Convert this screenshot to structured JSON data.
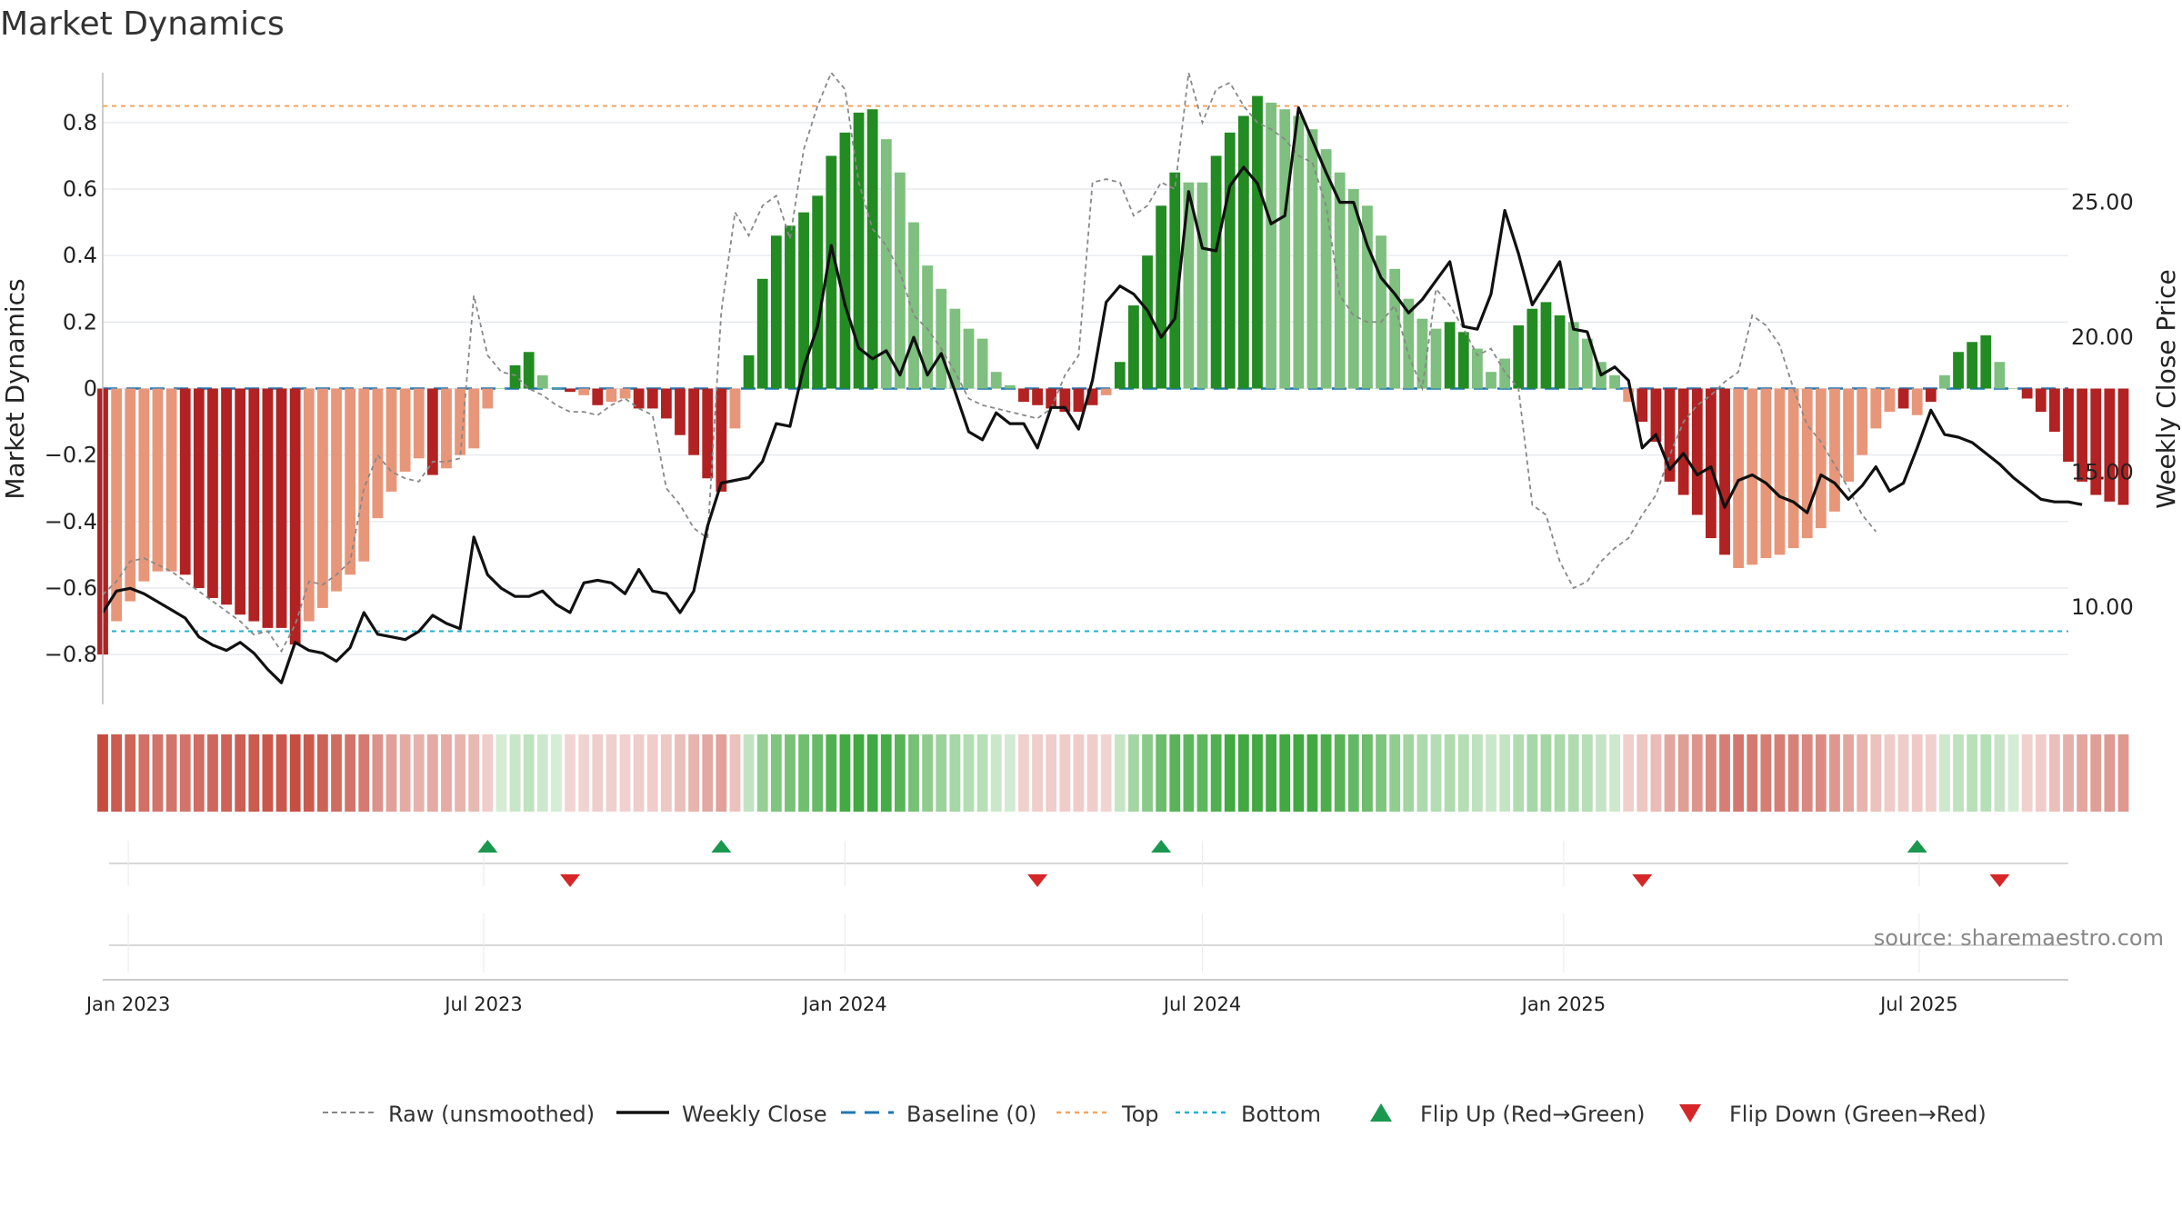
{
  "chart_data": {
    "type": "bar",
    "title": "Market Dynamics",
    "ylabel": "Market Dynamics",
    "y2label": "Weekly Close Price",
    "ylim": [
      -0.95,
      0.95
    ],
    "y2lim": [
      6.4,
      29.8
    ],
    "yticks": [
      "0.8",
      "0.6",
      "0.4",
      "0.2",
      "0",
      "−0.2",
      "−0.4",
      "−0.6",
      "−0.8"
    ],
    "ytick_values": [
      0.8,
      0.6,
      0.4,
      0.2,
      0,
      -0.2,
      -0.4,
      -0.6,
      -0.8
    ],
    "y2ticks": [
      "25.00",
      "20.00",
      "15.00",
      "10.00"
    ],
    "y2tick_values": [
      25,
      20,
      15,
      10
    ],
    "x_start": "2022-12-19",
    "x_end": "2025-09-15",
    "date_ticks": [
      {
        "date": "2023-01-01",
        "label": "Jan 2023"
      },
      {
        "date": "2023-07-01",
        "label": "Jul 2023"
      },
      {
        "date": "2024-01-01",
        "label": "Jan 2024"
      },
      {
        "date": "2024-07-01",
        "label": "Jul 2024"
      },
      {
        "date": "2025-01-01",
        "label": "Jan 2025"
      },
      {
        "date": "2025-07-01",
        "label": "Jul 2025"
      }
    ],
    "reference_lines": {
      "top": 0.85,
      "bottom": -0.73,
      "baseline": 0
    },
    "start_week": "2022-12-19",
    "momentum": [
      -0.8,
      -0.7,
      -0.64,
      -0.58,
      -0.55,
      -0.55,
      -0.56,
      -0.6,
      -0.63,
      -0.65,
      -0.68,
      -0.7,
      -0.72,
      -0.72,
      -0.77,
      -0.7,
      -0.66,
      -0.61,
      -0.56,
      -0.52,
      -0.39,
      -0.31,
      -0.25,
      -0.21,
      -0.26,
      -0.24,
      -0.2,
      -0.18,
      -0.06,
      0.0,
      0.07,
      0.11,
      0.04,
      0.0,
      -0.01,
      -0.02,
      -0.05,
      -0.04,
      -0.03,
      -0.06,
      -0.06,
      -0.09,
      -0.14,
      -0.2,
      -0.27,
      -0.31,
      -0.12,
      0.1,
      0.33,
      0.46,
      0.49,
      0.53,
      0.58,
      0.7,
      0.77,
      0.83,
      0.84,
      0.75,
      0.65,
      0.5,
      0.37,
      0.3,
      0.24,
      0.18,
      0.15,
      0.05,
      0.01,
      -0.04,
      -0.05,
      -0.06,
      -0.07,
      -0.07,
      -0.05,
      -0.02,
      0.08,
      0.25,
      0.4,
      0.55,
      0.65,
      0.62,
      0.62,
      0.7,
      0.77,
      0.82,
      0.88,
      0.86,
      0.84,
      0.82,
      0.78,
      0.72,
      0.65,
      0.6,
      0.55,
      0.46,
      0.36,
      0.27,
      0.21,
      0.18,
      0.2,
      0.17,
      0.12,
      0.05,
      0.09,
      0.19,
      0.24,
      0.26,
      0.22,
      0.2,
      0.15,
      0.08,
      0.04,
      -0.04,
      -0.1,
      -0.16,
      -0.28,
      -0.32,
      -0.38,
      -0.45,
      -0.5,
      -0.54,
      -0.53,
      -0.51,
      -0.5,
      -0.48,
      -0.45,
      -0.42,
      -0.37,
      -0.28,
      -0.2,
      -0.12,
      -0.07,
      -0.06,
      -0.08,
      -0.04,
      0.04,
      0.11,
      0.14,
      0.16,
      0.08,
      0.0,
      -0.03,
      -0.07,
      -0.13,
      -0.22,
      -0.28,
      -0.32,
      -0.34,
      -0.35
    ],
    "strong_flags": [
      1,
      0,
      0,
      0,
      0,
      0,
      1,
      1,
      1,
      1,
      1,
      1,
      1,
      1,
      1,
      0,
      0,
      0,
      0,
      0,
      0,
      0,
      0,
      0,
      1,
      0,
      0,
      0,
      0,
      0,
      1,
      1,
      0,
      0,
      1,
      0,
      1,
      0,
      0,
      1,
      1,
      1,
      1,
      1,
      1,
      1,
      0,
      1,
      1,
      1,
      1,
      1,
      1,
      1,
      1,
      1,
      1,
      0,
      0,
      0,
      0,
      0,
      0,
      0,
      0,
      0,
      0,
      1,
      1,
      1,
      1,
      1,
      1,
      0,
      1,
      1,
      1,
      1,
      1,
      0,
      0,
      1,
      1,
      1,
      1,
      0,
      0,
      0,
      0,
      0,
      0,
      0,
      0,
      0,
      0,
      0,
      0,
      0,
      1,
      1,
      0,
      0,
      0,
      1,
      1,
      1,
      1,
      0,
      0,
      0,
      0,
      0,
      1,
      1,
      1,
      1,
      1,
      1,
      1,
      0,
      0,
      0,
      0,
      0,
      0,
      0,
      0,
      0,
      0,
      0,
      0,
      1,
      0,
      1,
      0,
      1,
      1,
      1,
      0,
      0,
      1,
      1,
      1,
      1,
      1,
      1,
      1,
      1
    ],
    "raw": [
      -0.62,
      -0.58,
      -0.52,
      -0.51,
      -0.53,
      -0.55,
      -0.58,
      -0.61,
      -0.64,
      -0.67,
      -0.7,
      -0.74,
      -0.73,
      -0.79,
      -0.71,
      -0.58,
      -0.59,
      -0.56,
      -0.52,
      -0.3,
      -0.2,
      -0.25,
      -0.27,
      -0.28,
      -0.22,
      -0.22,
      -0.21,
      0.28,
      0.1,
      0.05,
      0.04,
      0.0,
      -0.02,
      -0.05,
      -0.07,
      -0.07,
      -0.08,
      -0.05,
      -0.03,
      -0.06,
      -0.08,
      -0.3,
      -0.35,
      -0.42,
      -0.45,
      0.23,
      0.53,
      0.46,
      0.55,
      0.58,
      0.45,
      0.72,
      0.85,
      0.95,
      0.9,
      0.62,
      0.48,
      0.43,
      0.35,
      0.22,
      0.18,
      0.12,
      0.05,
      -0.03,
      -0.05,
      -0.06,
      -0.07,
      -0.08,
      -0.09,
      -0.06,
      0.04,
      0.1,
      0.62,
      0.63,
      0.62,
      0.52,
      0.55,
      0.62,
      0.6,
      0.95,
      0.8,
      0.9,
      0.92,
      0.85,
      0.8,
      0.78,
      0.75,
      0.7,
      0.68,
      0.55,
      0.28,
      0.22,
      0.2,
      0.2,
      0.25,
      0.1,
      0.0,
      0.3,
      0.25,
      0.18,
      0.1,
      0.12,
      0.05,
      0.0,
      -0.35,
      -0.38,
      -0.52,
      -0.6,
      -0.58,
      -0.52,
      -0.48,
      -0.45,
      -0.38,
      -0.32,
      -0.2,
      -0.1,
      -0.05,
      -0.02,
      0.02,
      0.05,
      0.22,
      0.19,
      0.13,
      0.0,
      -0.11,
      -0.16,
      -0.23,
      -0.3,
      -0.38,
      -0.43
    ],
    "raw_x0": 0,
    "close": [
      9.8,
      10.6,
      10.7,
      10.5,
      10.2,
      9.9,
      9.6,
      8.9,
      8.6,
      8.4,
      8.7,
      8.3,
      7.7,
      7.2,
      8.7,
      8.4,
      8.3,
      8.0,
      8.5,
      9.8,
      9.0,
      8.9,
      8.8,
      9.1,
      9.7,
      9.4,
      9.2,
      12.6,
      11.2,
      10.7,
      10.4,
      10.4,
      10.6,
      10.1,
      9.8,
      10.9,
      11.0,
      10.9,
      10.5,
      11.4,
      10.6,
      10.5,
      9.8,
      10.6,
      13.0,
      14.6,
      14.7,
      14.8,
      15.4,
      16.8,
      16.7,
      18.9,
      20.4,
      23.4,
      21.2,
      19.6,
      19.2,
      19.5,
      18.6,
      20.0,
      18.6,
      19.4,
      18.0,
      16.5,
      16.2,
      17.2,
      16.8,
      16.8,
      15.9,
      17.4,
      17.4,
      16.6,
      18.4,
      21.3,
      21.9,
      21.6,
      21.0,
      20.0,
      20.7,
      25.4,
      23.3,
      23.2,
      25.6,
      26.3,
      25.7,
      24.2,
      24.5,
      28.5,
      27.3,
      26.1,
      25.0,
      25.0,
      23.4,
      22.2,
      21.6,
      20.9,
      21.4,
      22.1,
      22.8,
      20.4,
      20.3,
      21.6,
      24.7,
      23.1,
      21.2,
      22.0,
      22.8,
      20.3,
      20.2,
      18.6,
      18.9,
      18.4,
      15.9,
      16.4,
      15.1,
      15.7,
      14.9,
      15.2,
      13.7,
      14.7,
      14.9,
      14.6,
      14.1,
      13.9,
      13.5,
      14.9,
      14.6,
      14.0,
      14.5,
      15.2,
      14.3,
      14.6,
      15.9,
      17.3,
      16.4,
      16.3,
      16.1,
      15.7,
      15.3,
      14.8,
      14.4,
      14.0,
      13.9,
      13.9,
      13.8
    ],
    "close_x0": 0,
    "flip_up": [
      "2023-07-03",
      "2023-10-30",
      "2024-06-10",
      "2025-06-30"
    ],
    "flip_down": [
      "2023-08-14",
      "2024-04-08",
      "2025-02-10",
      "2025-08-11"
    ]
  },
  "legend": [
    {
      "key": "raw",
      "label": "Raw (unsmoothed)"
    },
    {
      "key": "close",
      "label": "Weekly Close"
    },
    {
      "key": "baseline",
      "label": "Baseline (0)"
    },
    {
      "key": "top",
      "label": "Top"
    },
    {
      "key": "bottom",
      "label": "Bottom"
    },
    {
      "key": "flipup",
      "label": "Flip Up (Red→Green)"
    },
    {
      "key": "flipdown",
      "label": "Flip Down (Green→Red)"
    }
  ],
  "source": "source: sharemaestro.com",
  "colors": {
    "strong_red": "#b22222",
    "light_red": "#e8967a",
    "strong_green": "#228b22",
    "light_green": "#7fbf7f",
    "close": "#111111",
    "raw": "#888888",
    "baseline": "#1f77b4",
    "top": "#f4a460",
    "bottom": "#20b2c8",
    "flip_up": "#1a9850",
    "flip_down": "#d62728"
  }
}
